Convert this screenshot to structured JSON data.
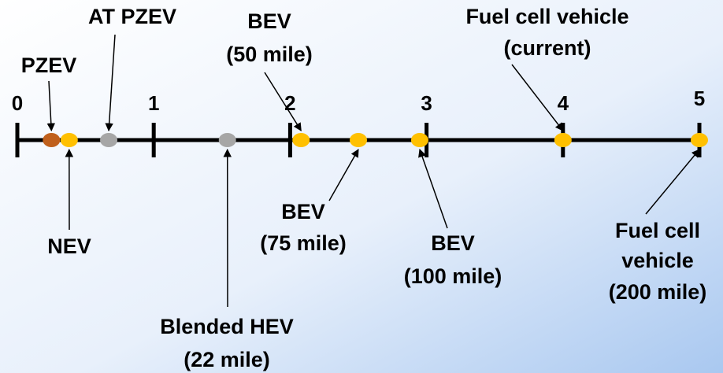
{
  "chart_data": {
    "type": "number_line",
    "xlim": [
      0,
      5
    ],
    "xticks": [
      0,
      1,
      2,
      3,
      4,
      5
    ],
    "points": [
      {
        "label": [
          "PZEV"
        ],
        "x": 0.25,
        "color": "#c0601c"
      },
      {
        "label": [
          "NEV"
        ],
        "x": 0.38,
        "color": "#ffc000"
      },
      {
        "label": [
          "AT PZEV"
        ],
        "x": 0.67,
        "color": "#a6a6a6"
      },
      {
        "label": [
          "Blended HEV",
          "(22 mile)"
        ],
        "x": 1.54,
        "color": "#a6a6a6"
      },
      {
        "label": [
          "BEV",
          "(50 mile)"
        ],
        "x": 2.08,
        "color": "#ffc000"
      },
      {
        "label": [
          "BEV",
          "(75 mile)"
        ],
        "x": 2.5,
        "color": "#ffc000"
      },
      {
        "label": [
          "BEV",
          "(100 mile)"
        ],
        "x": 2.95,
        "color": "#ffc000"
      },
      {
        "label": [
          "Fuel cell vehicle",
          "(current)"
        ],
        "x": 4.0,
        "color": "#ffc000"
      },
      {
        "label": [
          "Fuel cell",
          "vehicle",
          "(200 mile)"
        ],
        "x": 5.0,
        "color": "#ffc000"
      }
    ]
  }
}
